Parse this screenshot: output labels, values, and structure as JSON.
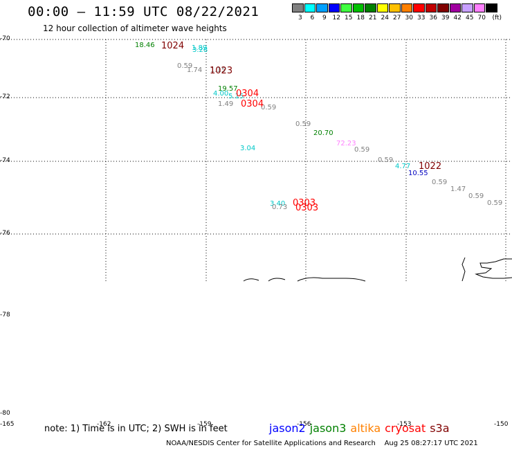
{
  "header": {
    "title": "00:00 — 11:59 UTC 08/22/2021",
    "subtitle": "12 hour collection of altimeter wave heights"
  },
  "legend": {
    "unit": "(ft)",
    "bins": [
      {
        "label": "3",
        "color": "#808080"
      },
      {
        "label": "6",
        "color": "#00ffff"
      },
      {
        "label": "9",
        "color": "#00a0ff"
      },
      {
        "label": "12",
        "color": "#0000ff"
      },
      {
        "label": "15",
        "color": "#40ff40"
      },
      {
        "label": "18",
        "color": "#00c000"
      },
      {
        "label": "21",
        "color": "#008000"
      },
      {
        "label": "24",
        "color": "#ffff00"
      },
      {
        "label": "27",
        "color": "#ffc000"
      },
      {
        "label": "30",
        "color": "#ff8000"
      },
      {
        "label": "33",
        "color": "#ff0000"
      },
      {
        "label": "36",
        "color": "#c00000"
      },
      {
        "label": "39",
        "color": "#800000"
      },
      {
        "label": "42",
        "color": "#a000a0"
      },
      {
        "label": "45",
        "color": "#c8a0ff"
      },
      {
        "label": "70",
        "color": "#ff80ff"
      },
      {
        "label": "",
        "color": "#000000"
      }
    ]
  },
  "axes": {
    "lat_ticks": [
      "-70",
      "-72",
      "-74",
      "-76",
      "-78",
      "-80"
    ],
    "lon_ticks": [
      "-165",
      "-162",
      "-159",
      "-156",
      "-153",
      "-150"
    ]
  },
  "observations": [
    {
      "value": "18.46",
      "color": "#008000"
    },
    {
      "value": "1.89",
      "color": "#00c8c8"
    },
    {
      "value": "3.28",
      "color": "#00c8c8"
    },
    {
      "value": "0.59",
      "color": "#808080"
    },
    {
      "value": "1.74",
      "color": "#808080"
    },
    {
      "value": "1.15",
      "color": "#808080"
    },
    {
      "value": "19.57",
      "color": "#008000"
    },
    {
      "value": "4.00",
      "color": "#00c8c8"
    },
    {
      "value": "5.15",
      "color": "#00c8c8"
    },
    {
      "value": "1.49",
      "color": "#808080"
    },
    {
      "value": "0.59",
      "color": "#808080"
    },
    {
      "value": "0.59",
      "color": "#808080"
    },
    {
      "value": "20.70",
      "color": "#008000"
    },
    {
      "value": "72.23",
      "color": "#ff80ff"
    },
    {
      "value": "0.59",
      "color": "#808080"
    },
    {
      "value": "3.04",
      "color": "#00c8c8"
    },
    {
      "value": "0.59",
      "color": "#808080"
    },
    {
      "value": "4.77",
      "color": "#00c8c8"
    },
    {
      "value": "10.55",
      "color": "#0000c0"
    },
    {
      "value": "0.59",
      "color": "#808080"
    },
    {
      "value": "1.47",
      "color": "#808080"
    },
    {
      "value": "0.59",
      "color": "#808080"
    },
    {
      "value": "0.59",
      "color": "#808080"
    },
    {
      "value": "3.40",
      "color": "#00c8c8"
    },
    {
      "value": "0.73",
      "color": "#808080"
    }
  ],
  "pass_times": [
    {
      "value": "1024",
      "color": "#800000"
    },
    {
      "value": "1023",
      "color": "#800000"
    },
    {
      "value": "0304",
      "color": "#ff0000"
    },
    {
      "value": "0304",
      "color": "#ff0000"
    },
    {
      "value": "1022",
      "color": "#800000"
    },
    {
      "value": "0303",
      "color": "#ff0000"
    },
    {
      "value": "0303",
      "color": "#ff0000"
    }
  ],
  "footer": {
    "note": "note: 1) Time is in UTC; 2) SWH is in feet",
    "satellites": [
      {
        "name": "jason2",
        "color": "#0000ff"
      },
      {
        "name": "jason3",
        "color": "#008000"
      },
      {
        "name": "altika",
        "color": "#ff8000"
      },
      {
        "name": "cryosat",
        "color": "#ff0000"
      },
      {
        "name": "s3a",
        "color": "#800000"
      }
    ],
    "credit": "NOAA/NESDIS Center for Satellite Applications and Research",
    "timestamp": "Aug 25 08:27:17 UTC 2021"
  }
}
